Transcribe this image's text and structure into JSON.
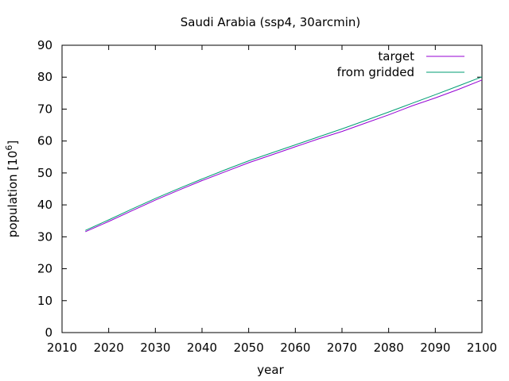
{
  "chart_data": {
    "type": "line",
    "title": "Saudi Arabia (ssp4, 30arcmin)",
    "xlabel": "year",
    "ylabel": "population [10",
    "ylabel_sup": "6",
    "ylabel_end": "]",
    "xlim": [
      2010,
      2100
    ],
    "ylim": [
      0,
      90
    ],
    "xticks": [
      2010,
      2020,
      2030,
      2040,
      2050,
      2060,
      2070,
      2080,
      2090,
      2100
    ],
    "yticks": [
      0,
      10,
      20,
      30,
      40,
      50,
      60,
      70,
      80,
      90
    ],
    "grid": false,
    "legend_position": "top-right",
    "series": [
      {
        "name": "target",
        "color": "#9400d3",
        "x": [
          2015,
          2020,
          2025,
          2030,
          2035,
          2040,
          2045,
          2050,
          2055,
          2060,
          2065,
          2070,
          2075,
          2080,
          2085,
          2090,
          2095,
          2100
        ],
        "y": [
          31.6,
          34.8,
          38.2,
          41.5,
          44.6,
          47.6,
          50.4,
          53.2,
          55.7,
          58.2,
          60.7,
          63.0,
          65.6,
          68.2,
          71.0,
          73.5,
          76.2,
          79.1
        ]
      },
      {
        "name": "from gridded",
        "color": "#009e73",
        "x": [
          2015,
          2020,
          2025,
          2030,
          2035,
          2040,
          2045,
          2050,
          2055,
          2060,
          2065,
          2070,
          2075,
          2080,
          2085,
          2090,
          2095,
          2100
        ],
        "y": [
          32.0,
          35.3,
          38.7,
          42.0,
          45.1,
          48.1,
          51.0,
          53.8,
          56.3,
          58.8,
          61.3,
          63.8,
          66.4,
          69.1,
          71.8,
          74.5,
          77.3,
          80.1
        ]
      }
    ]
  }
}
